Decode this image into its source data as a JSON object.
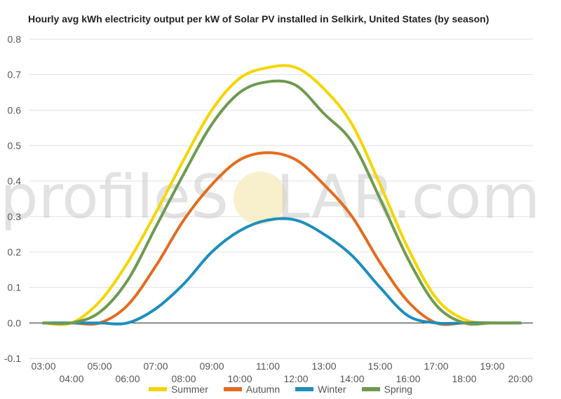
{
  "chart_data": {
    "type": "line",
    "title": "Hourly avg kWh electricity output per kW of Solar PV installed in Selkirk, United States (by season)",
    "xlabel": "",
    "ylabel": "",
    "ylim": [
      -0.1,
      0.8
    ],
    "yticks": [
      "0.8",
      "0.7",
      "0.6",
      "0.5",
      "0.4",
      "0.3",
      "0.2",
      "0.1",
      "0.0",
      "-0.1"
    ],
    "yticks_values": [
      0.8,
      0.7,
      0.6,
      0.5,
      0.4,
      0.3,
      0.2,
      0.1,
      0.0,
      -0.1
    ],
    "categories": [
      "03:00",
      "04:00",
      "05:00",
      "06:00",
      "07:00",
      "08:00",
      "09:00",
      "10:00",
      "11:00",
      "12:00",
      "13:00",
      "14:00",
      "15:00",
      "16:00",
      "17:00",
      "18:00",
      "19:00",
      "20:00"
    ],
    "grid": true,
    "legend_position": "bottom",
    "series": [
      {
        "name": "Summer",
        "color": "#F5D500",
        "values": [
          0.0,
          0.0,
          0.06,
          0.17,
          0.31,
          0.46,
          0.6,
          0.69,
          0.72,
          0.72,
          0.66,
          0.56,
          0.39,
          0.21,
          0.07,
          0.01,
          0.0,
          0.0
        ]
      },
      {
        "name": "Autumn",
        "color": "#E36C1E",
        "values": [
          0.0,
          0.0,
          0.0,
          0.05,
          0.16,
          0.29,
          0.39,
          0.46,
          0.48,
          0.46,
          0.39,
          0.3,
          0.17,
          0.06,
          0.0,
          0.0,
          0.0,
          0.0
        ]
      },
      {
        "name": "Winter",
        "color": "#1D8EBD",
        "values": [
          0.0,
          0.0,
          0.0,
          0.0,
          0.04,
          0.11,
          0.2,
          0.26,
          0.29,
          0.29,
          0.25,
          0.19,
          0.1,
          0.02,
          0.0,
          0.0,
          0.0,
          0.0
        ]
      },
      {
        "name": "Spring",
        "color": "#6E9A50",
        "values": [
          0.0,
          0.0,
          0.03,
          0.12,
          0.27,
          0.42,
          0.56,
          0.65,
          0.68,
          0.67,
          0.59,
          0.51,
          0.35,
          0.18,
          0.05,
          0.0,
          0.0,
          0.0
        ]
      }
    ]
  },
  "watermark": {
    "text_left": "profileS",
    "text_mid": "O",
    "text_right": "LAR.com"
  }
}
